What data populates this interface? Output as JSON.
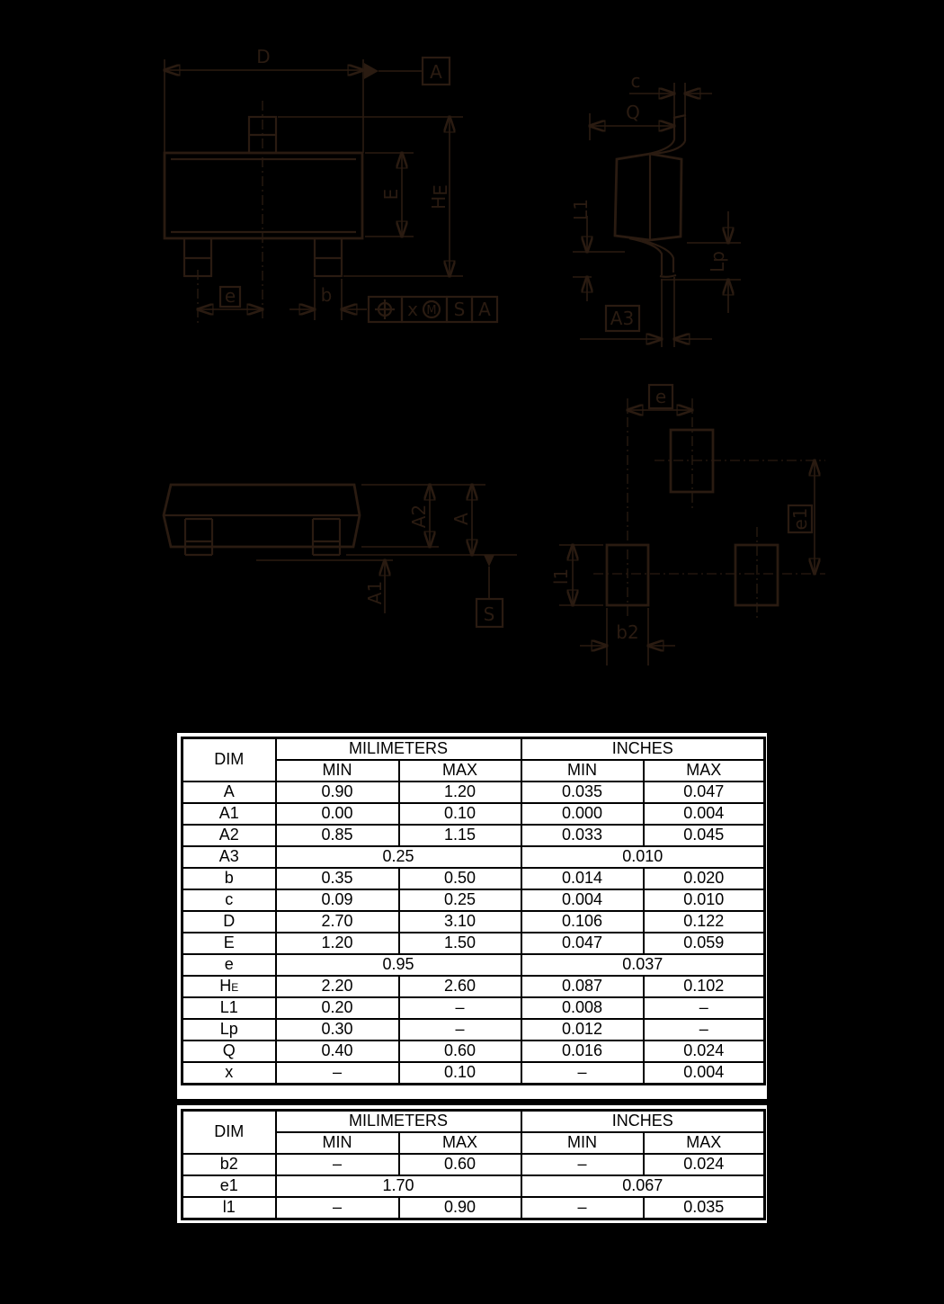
{
  "page": {
    "background": "#000000",
    "line_color": "#2a1b11",
    "table_background": "#ffffff",
    "table_text_color": "#000000"
  },
  "drawings": {
    "front_view": {
      "dim_d": "D",
      "datum_a": "A",
      "dim_e_body": "E",
      "dim_he_main": "H",
      "dim_he_sub": "E",
      "dim_e_pitch": "e",
      "dim_b": "b",
      "fcf": {
        "tolerance_x": "x",
        "modifier_m": "M",
        "datum_s": "S",
        "datum_a": "A"
      }
    },
    "side_view": {
      "dim_c": "c",
      "dim_q": "Q",
      "dim_l1": "L1",
      "dim_lp": "Lp",
      "dim_a3": "A3"
    },
    "profile_view": {
      "dim_a2": "A2",
      "dim_a": "A",
      "dim_a1": "A1",
      "datum_s": "S"
    },
    "land_pattern": {
      "dim_e": "e",
      "dim_e1": "e1",
      "dim_l1": "l1",
      "dim_b2": "b2"
    }
  },
  "table1": {
    "header": {
      "dim": "DIM",
      "millimeters": "MILIMETERS",
      "inches": "INCHES",
      "min": "MIN",
      "max": "MAX"
    },
    "rows": [
      {
        "dim": "A",
        "mm_min": "0.90",
        "mm_max": "1.20",
        "in_min": "0.035",
        "in_max": "0.047"
      },
      {
        "dim": "A1",
        "mm_min": "0.00",
        "mm_max": "0.10",
        "in_min": "0.000",
        "in_max": "0.004"
      },
      {
        "dim": "A2",
        "mm_min": "0.85",
        "mm_max": "1.15",
        "in_min": "0.033",
        "in_max": "0.045"
      },
      {
        "dim": "A3",
        "mm": "0.25",
        "in": "0.010"
      },
      {
        "dim": "b",
        "mm_min": "0.35",
        "mm_max": "0.50",
        "in_min": "0.014",
        "in_max": "0.020"
      },
      {
        "dim": "c",
        "mm_min": "0.09",
        "mm_max": "0.25",
        "in_min": "0.004",
        "in_max": "0.010"
      },
      {
        "dim": "D",
        "mm_min": "2.70",
        "mm_max": "3.10",
        "in_min": "0.106",
        "in_max": "0.122"
      },
      {
        "dim": "E",
        "mm_min": "1.20",
        "mm_max": "1.50",
        "in_min": "0.047",
        "in_max": "0.059"
      },
      {
        "dim": "e",
        "mm": "0.95",
        "in": "0.037"
      },
      {
        "dim": "H",
        "dim_sub": "E",
        "mm_min": "2.20",
        "mm_max": "2.60",
        "in_min": "0.087",
        "in_max": "0.102"
      },
      {
        "dim": "L1",
        "mm_min": "0.20",
        "mm_max": "–",
        "in_min": "0.008",
        "in_max": "–"
      },
      {
        "dim": "Lp",
        "mm_min": "0.30",
        "mm_max": "–",
        "in_min": "0.012",
        "in_max": "–"
      },
      {
        "dim": "Q",
        "mm_min": "0.40",
        "mm_max": "0.60",
        "in_min": "0.016",
        "in_max": "0.024"
      },
      {
        "dim": "x",
        "mm_min": "–",
        "mm_max": "0.10",
        "in_min": "–",
        "in_max": "0.004"
      }
    ]
  },
  "table2": {
    "header": {
      "dim": "DIM",
      "millimeters": "MILIMETERS",
      "inches": "INCHES",
      "min": "MIN",
      "max": "MAX"
    },
    "rows": [
      {
        "dim": "b2",
        "mm_min": "–",
        "mm_max": "0.60",
        "in_min": "–",
        "in_max": "0.024"
      },
      {
        "dim": "e1",
        "mm": "1.70",
        "in": "0.067"
      },
      {
        "dim": "l1",
        "mm_min": "–",
        "mm_max": "0.90",
        "in_min": "–",
        "in_max": "0.035"
      }
    ]
  }
}
